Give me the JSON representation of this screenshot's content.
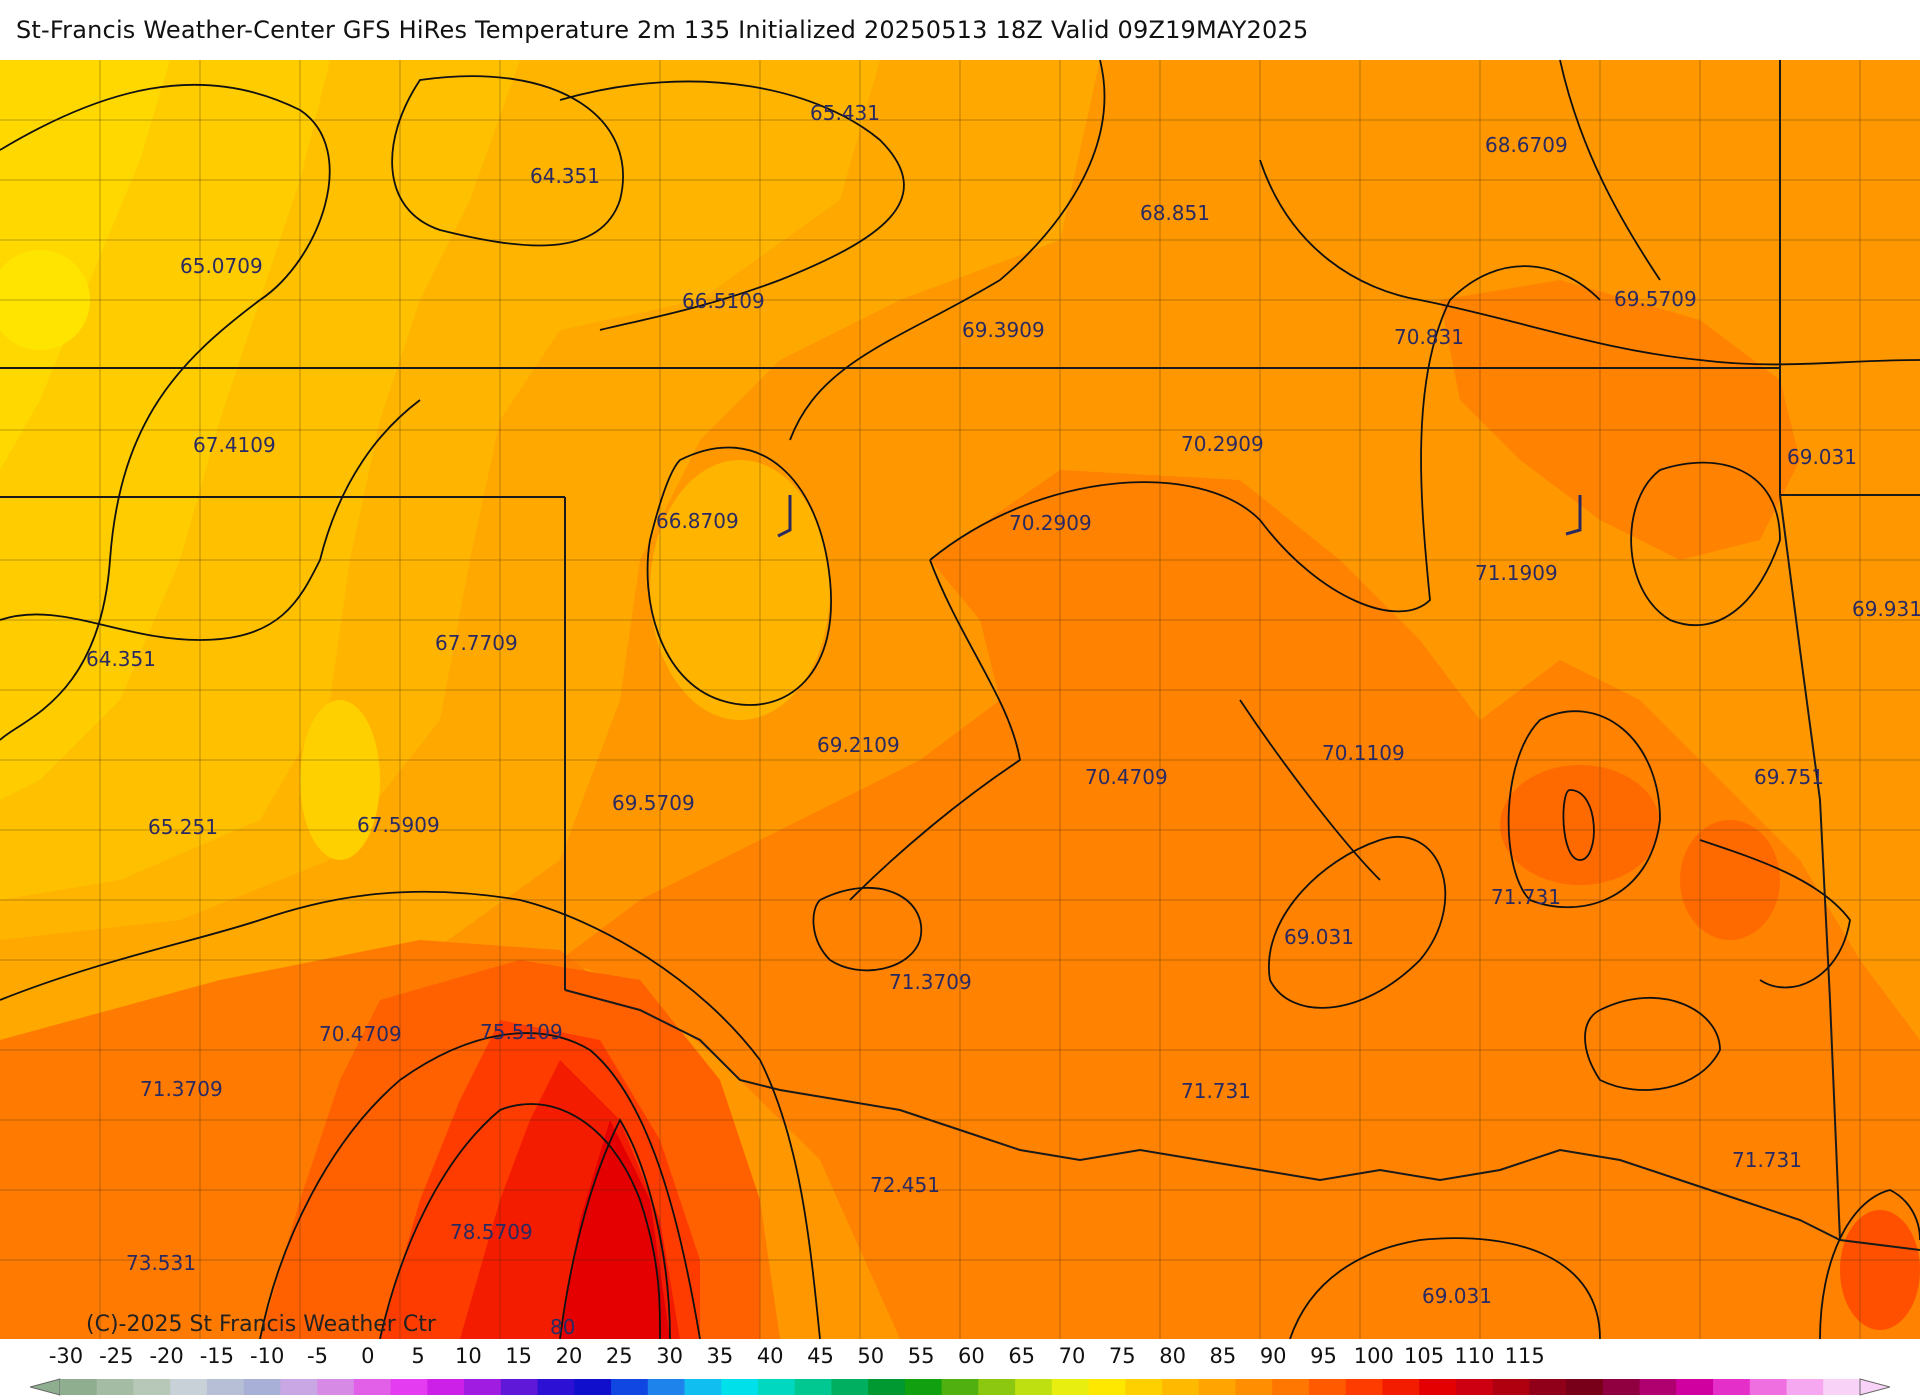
{
  "title": "St-Francis Weather-Center GFS HiRes Temperature 2m  135 Initialized 20250513 18Z Valid 09Z19MAY2025",
  "copyright": "(C)-2025 St Francis Weather Ctr",
  "value_labels": [
    "65.431",
    "64.351",
    "68.6709",
    "68.851",
    "65.0709",
    "66.5109",
    "69.3909",
    "70.831",
    "69.5709",
    "67.4109",
    "70.2909",
    "69.031",
    "66.8709",
    "70.2909",
    "71.1909",
    "69.931",
    "64.351",
    "67.7709",
    "69.2109",
    "70.4709",
    "70.1109",
    "69.751",
    "65.251",
    "67.5909",
    "69.5709",
    "71.731",
    "69.031",
    "71.3709",
    "70.4709",
    "75.5109",
    "71.3709",
    "71.731",
    "71.731",
    "72.451",
    "78.5709",
    "73.531",
    "69.031",
    "80"
  ],
  "legend": {
    "ticks": [
      "-30",
      "-25",
      "-20",
      "-15",
      "-10",
      "-5",
      "0",
      "5",
      "10",
      "15",
      "20",
      "25",
      "30",
      "35",
      "40",
      "45",
      "50",
      "55",
      "60",
      "65",
      "70",
      "75",
      "80",
      "85",
      "90",
      "95",
      "100",
      "105",
      "110",
      "115"
    ],
    "colors": [
      "#8fae8f",
      "#a4bba4",
      "#b8c8b8",
      "#c8d0d8",
      "#b6bfd6",
      "#a8b0d8",
      "#c9a6e4",
      "#d68ae6",
      "#e25fe8",
      "#e43cf0",
      "#cc20e8",
      "#a01ce0",
      "#6018d8",
      "#2c10d4",
      "#1010cc",
      "#1046e2",
      "#1e84ec",
      "#10bef0",
      "#00e0ea",
      "#00d8c0",
      "#00c890",
      "#00b060",
      "#009830",
      "#10a010",
      "#50b010",
      "#8cc810",
      "#bee010",
      "#e8ee10",
      "#ffe800",
      "#ffd000",
      "#ffba00",
      "#ffa400",
      "#ff8e00",
      "#ff7600",
      "#ff5a00",
      "#ff3c00",
      "#f41c00",
      "#e40000",
      "#cc0010",
      "#b00010",
      "#900018",
      "#780018",
      "#900040",
      "#b00070",
      "#d000a0",
      "#e430c8",
      "#ef6ee0",
      "#f5a8ef",
      "#f9d2f7"
    ],
    "accent_color": "#2a2a62"
  }
}
